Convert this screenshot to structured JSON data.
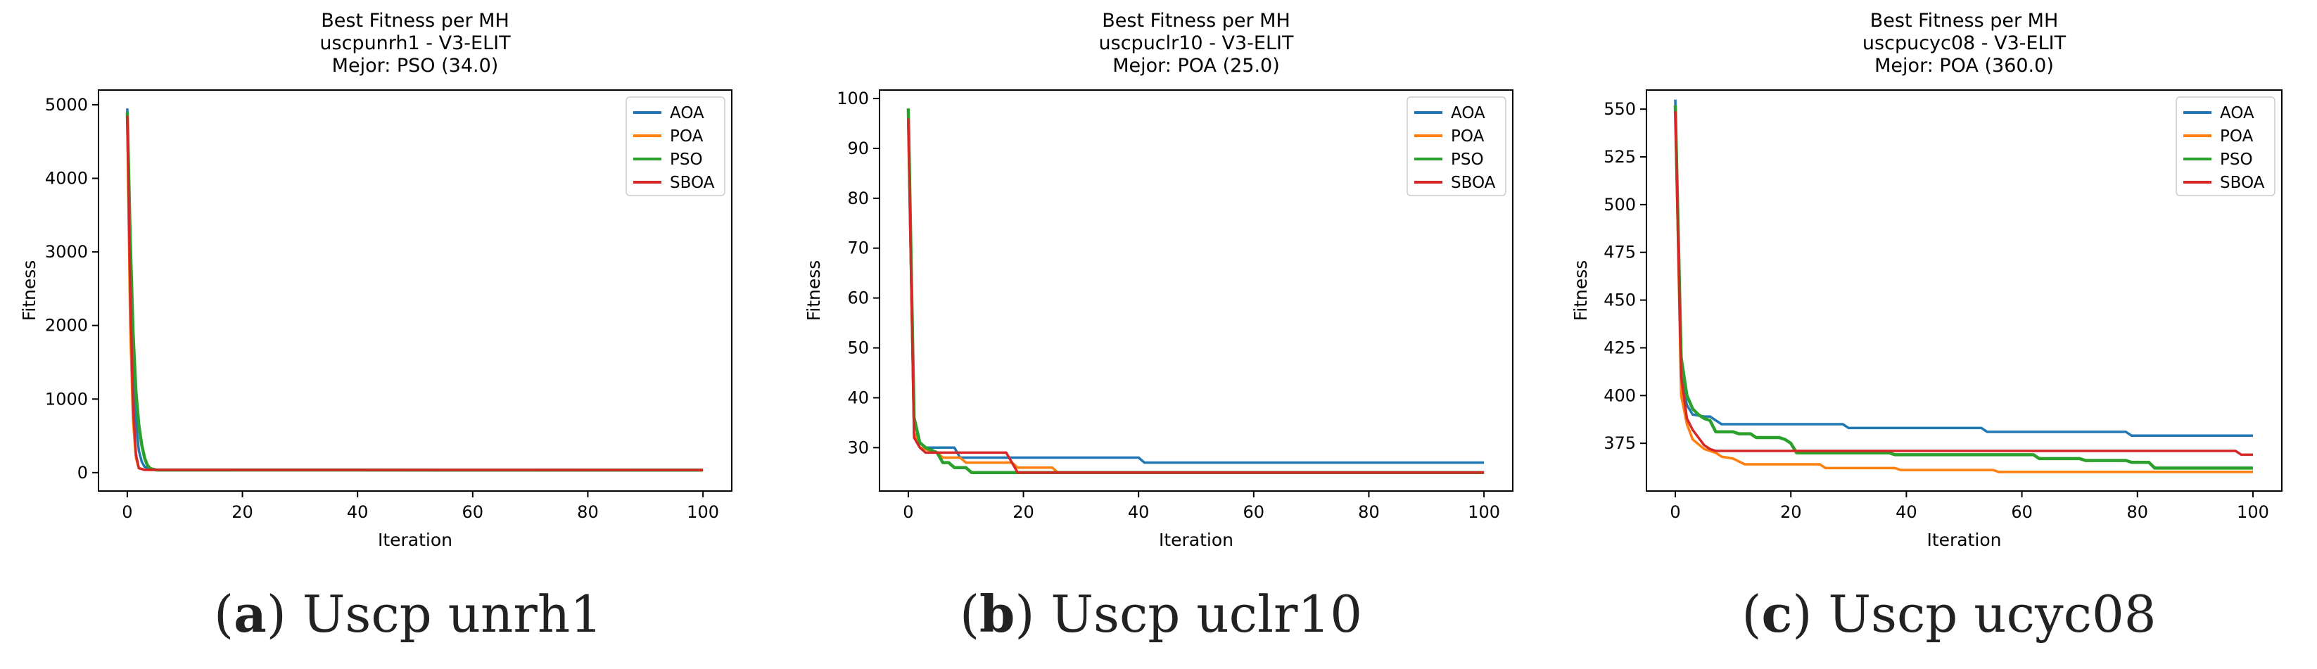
{
  "colors": {
    "AOA": "#1f77b4",
    "POA": "#ff7f0e",
    "PSO": "#2ca02c",
    "SBOA": "#d62728"
  },
  "captions": [
    {
      "letter": "a",
      "text": ") Uscp unrh1"
    },
    {
      "letter": "b",
      "text": ") Uscp uclr10"
    },
    {
      "letter": "c",
      "text": ") Uscp ucyc08"
    }
  ],
  "chart_data": [
    {
      "type": "line",
      "title": "Best Fitness per MH",
      "subtitle": "uscpunrh1 - V3-ELIT",
      "subtitle2": "Mejor: PSO (34.0)",
      "xlabel": "Iteration",
      "ylabel": "Fitness",
      "xlim": [
        -5,
        105
      ],
      "ylim": [
        -250,
        5200
      ],
      "xticks": [
        0,
        20,
        40,
        60,
        80,
        100
      ],
      "yticks": [
        0,
        1000,
        2000,
        3000,
        4000,
        5000
      ],
      "grid": false,
      "legend": "top-right",
      "series": [
        {
          "name": "AOA",
          "x": [
            0,
            0.5,
            1,
            1.5,
            2,
            2.5,
            3,
            4,
            5,
            83
          ],
          "y": [
            4950,
            3000,
            1500,
            700,
            300,
            150,
            80,
            45,
            40,
            40
          ]
        },
        {
          "name": "POA",
          "x": [
            0,
            0.5,
            1,
            1.5,
            2,
            3,
            4,
            100
          ],
          "y": [
            4800,
            2000,
            700,
            200,
            60,
            40,
            36,
            36
          ]
        },
        {
          "name": "PSO",
          "x": [
            0,
            0.5,
            1,
            1.5,
            2,
            2.5,
            3,
            3.5,
            4,
            5,
            100
          ],
          "y": [
            4900,
            3200,
            1900,
            1100,
            650,
            380,
            200,
            100,
            55,
            36,
            34
          ]
        },
        {
          "name": "SBOA",
          "x": [
            0,
            0.5,
            1,
            1.5,
            2,
            3,
            100
          ],
          "y": [
            4850,
            2500,
            900,
            250,
            60,
            38,
            36
          ]
        }
      ]
    },
    {
      "type": "line",
      "title": "Best Fitness per MH",
      "subtitle": "uscpuclr10 - V3-ELIT",
      "subtitle2": "Mejor: POA (25.0)",
      "xlabel": "Iteration",
      "ylabel": "Fitness",
      "xlim": [
        -5,
        105
      ],
      "ylim": [
        21.3,
        101.7
      ],
      "xticks": [
        0,
        20,
        40,
        60,
        80,
        100
      ],
      "yticks": [
        30,
        40,
        50,
        60,
        70,
        80,
        90,
        100
      ],
      "grid": false,
      "legend": "top-right",
      "series": [
        {
          "name": "AOA",
          "x": [
            0,
            1,
            2,
            3,
            8,
            9,
            40,
            41,
            100
          ],
          "y": [
            96,
            33,
            31,
            30,
            30,
            28,
            28,
            27,
            27
          ]
        },
        {
          "name": "POA",
          "x": [
            0,
            1,
            2,
            5,
            6,
            9,
            10,
            18,
            19,
            25,
            26,
            100
          ],
          "y": [
            95,
            33,
            30,
            29,
            28,
            28,
            27,
            27,
            26,
            26,
            25,
            25
          ]
        },
        {
          "name": "PSO",
          "x": [
            0,
            1,
            2,
            3,
            5,
            6,
            7,
            8,
            10,
            11,
            100
          ],
          "y": [
            98,
            36,
            31,
            30,
            29,
            27,
            27,
            26,
            26,
            25,
            25
          ]
        },
        {
          "name": "SBOA",
          "x": [
            0,
            1,
            2,
            3,
            10,
            11,
            17,
            18,
            19,
            100
          ],
          "y": [
            96,
            32,
            30,
            29,
            29,
            29,
            29,
            27,
            25,
            25
          ]
        }
      ]
    },
    {
      "type": "line",
      "title": "Best Fitness per MH",
      "subtitle": "uscpucyc08 - V3-ELIT",
      "subtitle2": "Mejor: POA (360.0)",
      "xlabel": "Iteration",
      "ylabel": "Fitness",
      "xlim": [
        -5,
        105
      ],
      "ylim": [
        350,
        560
      ],
      "xticks": [
        0,
        20,
        40,
        60,
        80,
        100
      ],
      "yticks": [
        375,
        400,
        425,
        450,
        475,
        500,
        525,
        550
      ],
      "grid": false,
      "legend": "top-right",
      "series": [
        {
          "name": "AOA",
          "x": [
            0,
            1,
            2,
            3,
            5,
            6,
            7,
            8,
            29,
            30,
            53,
            54,
            78,
            79,
            100
          ],
          "y": [
            555,
            410,
            395,
            390,
            389,
            389,
            387,
            385,
            385,
            383,
            383,
            381,
            381,
            379,
            379
          ]
        },
        {
          "name": "POA",
          "x": [
            0,
            1,
            2,
            3,
            5,
            7,
            8,
            10,
            12,
            25,
            26,
            38,
            39,
            55,
            56,
            100
          ],
          "y": [
            550,
            400,
            385,
            377,
            372,
            370,
            368,
            367,
            364,
            364,
            362,
            362,
            361,
            361,
            360,
            360
          ]
        },
        {
          "name": "PSO",
          "x": [
            0,
            1,
            2,
            3,
            4,
            5,
            6,
            7,
            10,
            11,
            13,
            14,
            18,
            19,
            20,
            21,
            37,
            38,
            62,
            63,
            70,
            71,
            78,
            79,
            82,
            83,
            100
          ],
          "y": [
            552,
            420,
            400,
            393,
            390,
            388,
            387,
            381,
            381,
            380,
            380,
            378,
            378,
            377,
            375,
            370,
            370,
            369,
            369,
            367,
            367,
            366,
            366,
            365,
            365,
            362,
            362
          ]
        },
        {
          "name": "SBOA",
          "x": [
            0,
            1,
            2,
            3,
            4,
            5,
            6,
            7,
            97,
            98,
            100
          ],
          "y": [
            549,
            410,
            388,
            382,
            378,
            374,
            372,
            371,
            371,
            369,
            369
          ]
        }
      ]
    }
  ]
}
